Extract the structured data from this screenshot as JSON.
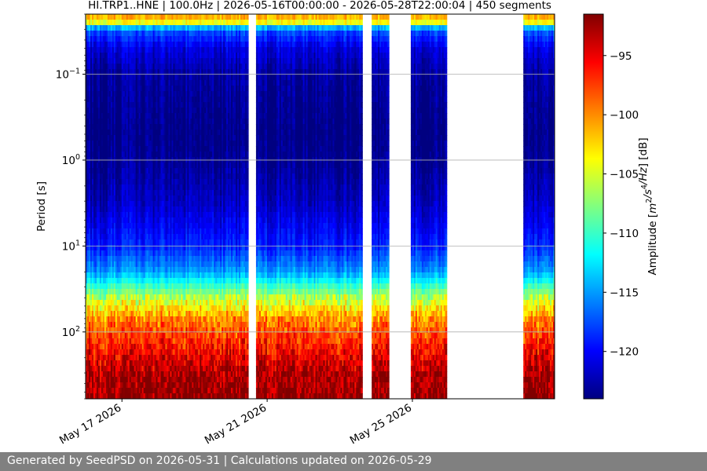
{
  "chart_data": {
    "type": "heatmap",
    "title": "HI.TRP1..HNE | 100.0Hz | 2026-05-16T00:00:00 - 2026-05-28T22:00:04 | 450 segments",
    "ylabel": "Period [s]",
    "xlabel": "",
    "y_scale": "log",
    "y_inverted": true,
    "ylim": [
      0.02,
      600
    ],
    "y_ticks": [
      {
        "value": 0.1,
        "base": "10",
        "exp": "−1"
      },
      {
        "value": 1,
        "base": "10",
        "exp": "0"
      },
      {
        "value": 10,
        "base": "10",
        "exp": "1"
      },
      {
        "value": 100,
        "base": "10",
        "exp": "2"
      }
    ],
    "x_start": "2026-05-16T00:00:00",
    "x_end": "2026-05-28T22:00:04",
    "x_ticks": [
      {
        "date": "2026-05-17",
        "label": "May 17 2026"
      },
      {
        "date": "2026-05-21",
        "label": "May 21 2026"
      },
      {
        "date": "2026-05-25",
        "label": "May 25 2026"
      }
    ],
    "grid": "horizontal at y ticks",
    "data_gaps": [
      {
        "start": "2026-05-20T11:00:00",
        "end": "2026-05-20T17:00:00"
      },
      {
        "start": "2026-05-23T15:00:00",
        "end": "2026-05-23T21:00:00"
      },
      {
        "start": "2026-05-24T08:00:00",
        "end": "2026-05-24T23:00:00"
      },
      {
        "start": "2026-05-25T23:00:00",
        "end": "2026-05-28T01:00:00"
      }
    ],
    "colorbar": {
      "label": "Amplitude [m²/s⁴/Hz] [dB]",
      "label_pre": "Amplitude [",
      "label_post": "] [dB]",
      "units_markup": "m^2/s^4/Hz",
      "min": -124,
      "max": -91.5,
      "ticks": [
        {
          "value": -95,
          "label": "−95"
        },
        {
          "value": -100,
          "label": "−100"
        },
        {
          "value": -105,
          "label": "−105"
        },
        {
          "value": -110,
          "label": "−110"
        },
        {
          "value": -115,
          "label": "−115"
        },
        {
          "value": -120,
          "label": "−120"
        }
      ],
      "colormap": "jet"
    },
    "period_profile_db": [
      {
        "period": 0.02,
        "db": -100
      },
      {
        "period": 0.025,
        "db": -104
      },
      {
        "period": 0.03,
        "db": -117
      },
      {
        "period": 0.05,
        "db": -121
      },
      {
        "period": 0.1,
        "db": -123
      },
      {
        "period": 0.5,
        "db": -124
      },
      {
        "period": 1,
        "db": -123.5
      },
      {
        "period": 3,
        "db": -122
      },
      {
        "period": 10,
        "db": -119
      },
      {
        "period": 20,
        "db": -115
      },
      {
        "period": 40,
        "db": -106
      },
      {
        "period": 70,
        "db": -100
      },
      {
        "period": 150,
        "db": -96
      },
      {
        "period": 300,
        "db": -93
      },
      {
        "period": 600,
        "db": -92
      }
    ]
  },
  "footer": {
    "text": "Generated by SeedPSD on 2026-05-31 | Calculations updated on 2026-05-29"
  }
}
